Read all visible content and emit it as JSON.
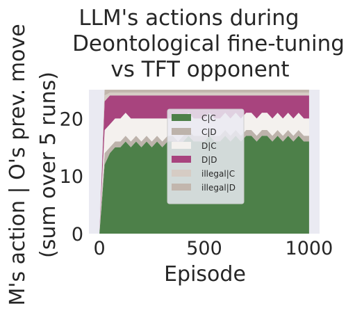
{
  "chart_data": {
    "type": "area",
    "stacked": true,
    "title_lines": [
      "LLM's actions during",
      "Deontological fine-tuning",
      "vs TFT opponent"
    ],
    "xlabel": "Episode",
    "ylabel_lines": [
      "M's action | O's prev. move",
      "(sum over 5 runs)"
    ],
    "xlim": [
      -50,
      1050
    ],
    "ylim": [
      0,
      25
    ],
    "xticks": [
      0,
      500,
      1000
    ],
    "xtick_labels": [
      "0",
      "500",
      "1000"
    ],
    "yticks": [
      0,
      10,
      20
    ],
    "ytick_labels": [
      "0",
      "10",
      "20"
    ],
    "grid": false,
    "legend_position": "center",
    "x": [
      0,
      25,
      50,
      75,
      100,
      125,
      150,
      175,
      200,
      225,
      250,
      275,
      300,
      325,
      350,
      375,
      400,
      425,
      450,
      475,
      500,
      525,
      550,
      575,
      600,
      625,
      650,
      675,
      700,
      725,
      750,
      775,
      800,
      825,
      850,
      875,
      900,
      925,
      950,
      975,
      1000
    ],
    "series": [
      {
        "name": "C|C",
        "color": "#4d8049",
        "values": [
          0,
          12,
          14,
          15,
          15,
          16,
          15,
          16,
          15,
          16,
          15,
          16,
          15,
          16,
          16,
          15,
          16,
          17,
          16,
          16,
          16,
          17,
          16,
          16,
          17,
          16,
          17,
          16,
          17,
          17,
          16,
          17,
          17,
          16,
          17,
          16,
          17,
          16,
          17,
          16,
          16
        ]
      },
      {
        "name": "C|D",
        "color": "#bdb3ab",
        "values": [
          0,
          2,
          1,
          1,
          1,
          1,
          1,
          1,
          1,
          1,
          1,
          1,
          1,
          1,
          1,
          1,
          1,
          1,
          1,
          1,
          1,
          1,
          1,
          1,
          1,
          1,
          1,
          1,
          1,
          1,
          1,
          1,
          1,
          1,
          1,
          1,
          1,
          1,
          1,
          1,
          1
        ]
      },
      {
        "name": "D|C",
        "color": "#f4f1ee",
        "values": [
          0,
          4,
          4,
          4,
          4,
          4,
          4,
          3,
          4,
          3,
          4,
          3,
          4,
          3,
          3,
          4,
          3,
          3,
          3,
          3,
          3,
          3,
          3,
          3,
          3,
          3,
          3,
          3,
          3,
          3,
          3,
          3,
          3,
          3,
          3,
          3,
          3,
          3,
          3,
          3,
          3
        ]
      },
      {
        "name": "D|D",
        "color": "#a8447e",
        "values": [
          0,
          5,
          5,
          4,
          4,
          3,
          4,
          4,
          4,
          4,
          4,
          4,
          4,
          4,
          4,
          4,
          4,
          3,
          4,
          4,
          4,
          3,
          4,
          4,
          3,
          4,
          3,
          4,
          3,
          3,
          4,
          3,
          3,
          4,
          3,
          4,
          3,
          4,
          3,
          4,
          4
        ]
      },
      {
        "name": "illegal|C",
        "color": "#d6ccc4",
        "values": [
          0,
          1,
          0.5,
          0.5,
          0.5,
          0.5,
          0.5,
          0.5,
          0.5,
          0.5,
          0.5,
          0.5,
          0.5,
          0.5,
          0.5,
          0.5,
          0.5,
          0.5,
          0.5,
          0.5,
          0.5,
          0.5,
          0.5,
          0.5,
          0.5,
          0.5,
          0.5,
          0.5,
          0.5,
          0.5,
          0.5,
          0.5,
          0.5,
          0.5,
          0.5,
          0.5,
          0.5,
          0.5,
          0.5,
          0.5,
          0.5
        ]
      },
      {
        "name": "illegal|D",
        "color": "#c2b6ad",
        "values": [
          0,
          1,
          0.5,
          0.5,
          0.5,
          0.5,
          0.5,
          0.5,
          0.5,
          0.5,
          0.5,
          0.5,
          0.5,
          0.5,
          0.5,
          0.5,
          0.5,
          0.5,
          0.5,
          0.5,
          0.5,
          0.5,
          0.5,
          0.5,
          0.5,
          0.5,
          0.5,
          0.5,
          0.5,
          0.5,
          0.5,
          0.5,
          0.5,
          0.5,
          0.5,
          0.5,
          0.5,
          0.5,
          0.5,
          0.5,
          0.5
        ]
      }
    ]
  }
}
